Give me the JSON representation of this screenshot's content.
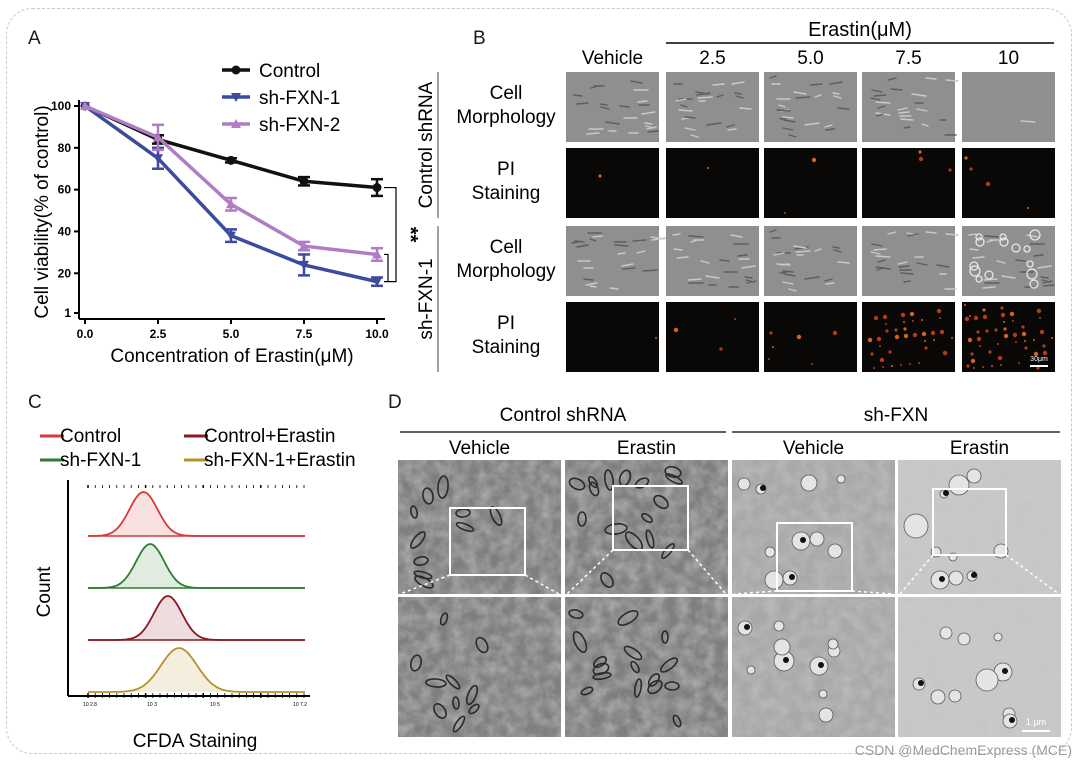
{
  "panels": {
    "A": "A",
    "B": "B",
    "C": "C",
    "D": "D"
  },
  "watermark": "CSDN @MedChemExpress (MCE)",
  "colors": {
    "control": "#111111",
    "sh_fxn_1": "#3c4ba0",
    "sh_fxn_2": "#b07cc6",
    "hist_control": "#d9393b",
    "hist_control_erastin": "#8b1a1f",
    "hist_sh_fxn_1": "#2e7d32",
    "hist_sh_fxn_1_erastin": "#b8902a"
  },
  "chart_data": [
    {
      "type": "line",
      "panel": "A",
      "xlabel": "Concentration of Erastin(μM)",
      "ylabel": "Cell viability(% of control)",
      "x": [
        0.0,
        2.5,
        5.0,
        7.5,
        10.0
      ],
      "x_tick_labels": [
        "0.0",
        "2.5",
        "5.0",
        "7.5",
        "10.0"
      ],
      "y_tick_labels": [
        "1",
        "20",
        "40",
        "60",
        "80",
        "100"
      ],
      "y_ticks": [
        1,
        20,
        40,
        60,
        80,
        100
      ],
      "xlim": [
        0,
        10
      ],
      "ylim": [
        1,
        100
      ],
      "legend_position": "top-right",
      "series": [
        {
          "name": "Control",
          "key": "control",
          "marker": "circle",
          "values": [
            100,
            84,
            74,
            64,
            61
          ],
          "errors": [
            0,
            2,
            1,
            2,
            4
          ]
        },
        {
          "name": "sh-FXN-1",
          "key": "sh_fxn_1",
          "marker": "triangle-down",
          "values": [
            100,
            75,
            38,
            24,
            16
          ],
          "errors": [
            0,
            5,
            3,
            5,
            2
          ]
        },
        {
          "name": "sh-FXN-2",
          "key": "sh_fxn_2",
          "marker": "triangle-up",
          "values": [
            100,
            85,
            53,
            33,
            29
          ],
          "errors": [
            0,
            6,
            3,
            2,
            3
          ]
        }
      ],
      "annotations": [
        "**"
      ]
    },
    {
      "type": "area",
      "panel": "C",
      "xlabel": "CFDA Staining",
      "ylabel": "Count",
      "x_tick_labels": [
        "10 2.8",
        "10 3",
        "10 5",
        "10 7.2"
      ],
      "legend_position": "top",
      "series": [
        {
          "name": "Control",
          "key": "hist_control",
          "peak_x": 0.25
        },
        {
          "name": "sh-FXN-1",
          "key": "hist_sh_fxn_1",
          "peak_x": 0.28
        },
        {
          "name": "Control+Erastin",
          "key": "hist_control_erastin",
          "peak_x": 0.36
        },
        {
          "name": "sh-FXN-1+Erastin",
          "key": "hist_sh_fxn_1_erastin",
          "peak_x": 0.41
        }
      ]
    }
  ],
  "panel_b": {
    "header": "Erastin(μM)",
    "columns": [
      "Vehicle",
      "2.5",
      "5.0",
      "7.5",
      "10"
    ],
    "groups": [
      {
        "label": "Control shRNA",
        "rows": [
          "Cell\nMorphology",
          "PI\nStaining"
        ]
      },
      {
        "label": "sh-FXN-1",
        "rows": [
          "Cell\nMorphology",
          "PI\nStaining"
        ]
      }
    ],
    "scale_bar": "30μm",
    "pi_intensity": [
      [
        0.01,
        0.02,
        0.03,
        0.05,
        0.06
      ],
      [
        0.01,
        0.05,
        0.1,
        0.6,
        0.75
      ]
    ]
  },
  "panel_d": {
    "groups": [
      {
        "label": "Control shRNA",
        "columns": [
          "Vehicle",
          "Erastin"
        ]
      },
      {
        "label": "sh-FXN",
        "columns": [
          "Vehicle",
          "Erastin"
        ]
      }
    ],
    "scale_bar": "1 μm"
  }
}
